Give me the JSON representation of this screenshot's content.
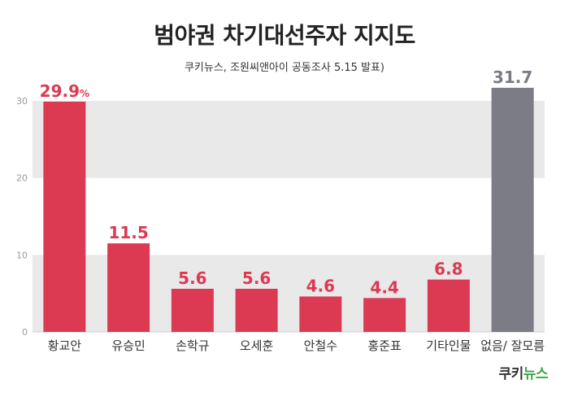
{
  "chart_data": {
    "type": "bar",
    "title": "범야권 차기대선주자 지지도",
    "subtitle": "쿠키뉴스, 조원씨앤아이 공동조사 5.15 발표)",
    "categories": [
      "황교안",
      "유승민",
      "손학규",
      "오세훈",
      "안철수",
      "홍준표",
      "기타인물",
      "없음/ 잘모름"
    ],
    "values": [
      29.9,
      11.5,
      5.6,
      5.6,
      4.6,
      4.4,
      6.8,
      31.7
    ],
    "value_labels": [
      "29.9",
      "11.5",
      "5.6",
      "5.6",
      "4.6",
      "4.4",
      "6.8",
      "31.7"
    ],
    "first_value_unit": "%",
    "ylim": [
      0,
      30
    ],
    "yticks": [
      "0",
      "10",
      "20",
      "30"
    ],
    "grid": "alternating bands",
    "colors": {
      "bar": "#dc3a52",
      "bar_last": "#7b7c85",
      "label": "#dc3a52",
      "label_last": "#7b7c85",
      "band": "#e9e9ea",
      "tick": "#999999",
      "category": "#333333"
    }
  },
  "logo": {
    "main": "쿠키",
    "accent": "뉴스"
  }
}
